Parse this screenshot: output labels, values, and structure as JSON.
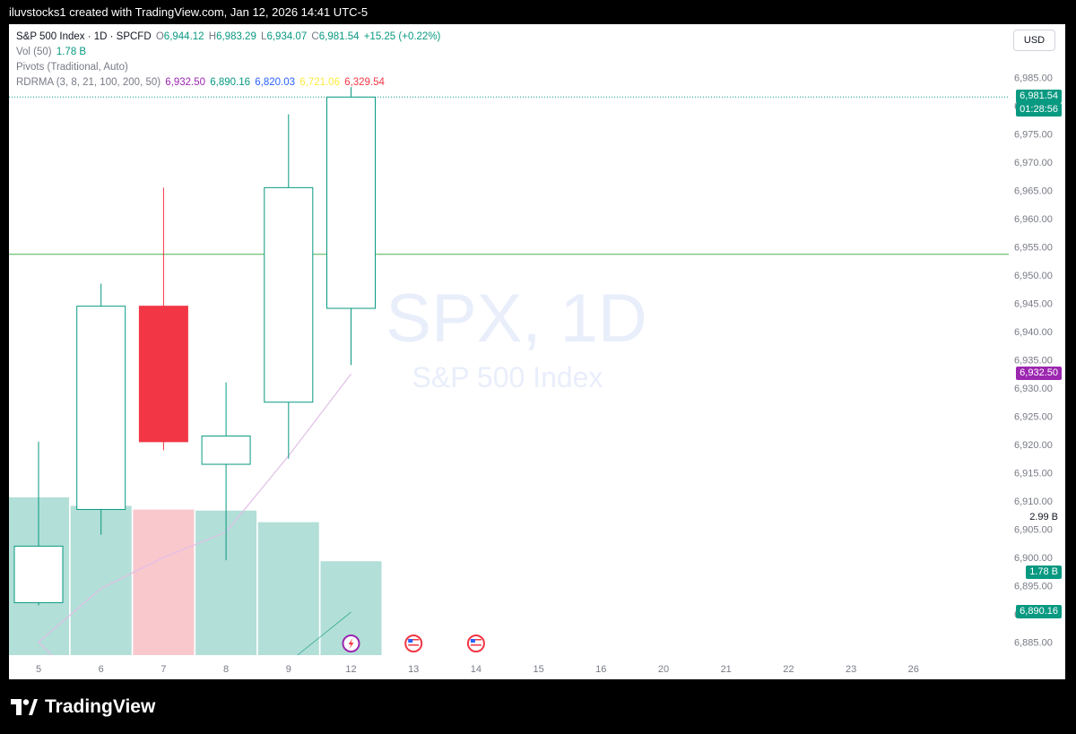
{
  "caption": "iluvstocks1 created with TradingView.com, Jan 12, 2026 14:41 UTC-5",
  "currency": "USD",
  "watermark": {
    "symbol": "SPX, 1D",
    "name": "S&P 500 Index"
  },
  "legend": {
    "symbol": "S&P 500 Index · 1D · SPCFD",
    "o_label": "O",
    "o": "6,944.12",
    "h_label": "H",
    "h": "6,983.29",
    "l_label": "L",
    "l": "6,934.07",
    "c_label": "C",
    "c": "6,981.54",
    "change": "+15.25 (+0.22%)",
    "vol_label": "Vol (50)",
    "vol": "1.78 B",
    "pivots": "Pivots (Traditional, Auto)",
    "rdrma_label": "RDRMA (3, 8, 21, 100, 200, 50)",
    "rdrma_values": [
      "6,932.50",
      "6,890.16",
      "6,820.03",
      "6,721.06",
      "6,329.54"
    ],
    "rdrma_colors": [
      "#9c27b0",
      "#089981",
      "#2962ff",
      "#ffeb3b",
      "#f23645"
    ]
  },
  "tags": {
    "last_price": "6,981.54",
    "countdown": "01:28:56",
    "ma_purple": "6,932.50",
    "vol_high": "2.99 B",
    "vol_last": "1.78 B",
    "ma_teal": "6,890.16"
  },
  "colors": {
    "up": "#089981",
    "down": "#f23645",
    "vol_up": "#b2dfd7",
    "vol_down": "#f8c8cd",
    "pivot": "#4caf50"
  },
  "footer": {
    "brand": "TradingView"
  },
  "chart_data": {
    "type": "candlestick",
    "x_ticks": [
      "5",
      "6",
      "7",
      "8",
      "9",
      "12",
      "13",
      "14",
      "15",
      "16",
      "20",
      "21",
      "22",
      "23",
      "26"
    ],
    "y_ticks": [
      "6,985.00",
      "6,980.00",
      "6,975.00",
      "6,970.00",
      "6,965.00",
      "6,960.00",
      "6,955.00",
      "6,950.00",
      "6,945.00",
      "6,940.00",
      "6,935.00",
      "6,930.00",
      "6,925.00",
      "6,920.00",
      "6,915.00",
      "6,910.00",
      "6,905.00",
      "6,900.00",
      "6,895.00",
      "6,890.00",
      "6,885.00"
    ],
    "y_tick_values": [
      6985,
      6980,
      6975,
      6970,
      6965,
      6960,
      6955,
      6950,
      6945,
      6940,
      6935,
      6930,
      6925,
      6920,
      6915,
      6910,
      6905,
      6900,
      6895,
      6890,
      6885
    ],
    "ylim": [
      6883.5,
      6989.5
    ],
    "candles": [
      {
        "date": "5",
        "open": 6892.0,
        "high": 6920.5,
        "low": 6891.5,
        "close": 6902.0
      },
      {
        "date": "6",
        "open": 6908.5,
        "high": 6948.5,
        "low": 6904.0,
        "close": 6944.5
      },
      {
        "date": "7",
        "open": 6944.5,
        "high": 6965.5,
        "low": 6919.0,
        "close": 6920.5
      },
      {
        "date": "8",
        "open": 6916.5,
        "high": 6931.0,
        "low": 6899.5,
        "close": 6921.5
      },
      {
        "date": "9",
        "open": 6927.5,
        "high": 6978.5,
        "low": 6917.5,
        "close": 6965.5
      },
      {
        "date": "12",
        "open": 6944.12,
        "high": 6983.29,
        "low": 6934.07,
        "close": 6981.54
      }
    ],
    "volume": [
      {
        "date": "5",
        "value": 2.99,
        "up": true
      },
      {
        "date": "6",
        "value": 2.83,
        "up": true
      },
      {
        "date": "7",
        "value": 2.76,
        "up": false
      },
      {
        "date": "8",
        "value": 2.74,
        "up": true
      },
      {
        "date": "9",
        "value": 2.52,
        "up": true
      },
      {
        "date": "12",
        "value": 1.78,
        "up": true
      }
    ],
    "volume_max_ref": 2.99,
    "pivot_level": 6953.7,
    "ma_line": [
      {
        "date": "5",
        "value": 6885.0
      },
      {
        "date": "6",
        "value": 6894.5
      },
      {
        "date": "7",
        "value": 6900.0
      },
      {
        "date": "8",
        "value": 6904.5
      },
      {
        "date": "9",
        "value": 6918.0
      },
      {
        "date": "12",
        "value": 6932.5
      }
    ],
    "vol_ma_line": [
      {
        "date": "9",
        "value": 0.0
      },
      {
        "date": "12",
        "value": 0.8
      }
    ],
    "last_price_level": 6981.54,
    "event_markers": [
      {
        "date": "12",
        "icon": "lightning-icon"
      },
      {
        "date": "13",
        "icon": "us-flag-icon"
      },
      {
        "date": "14",
        "icon": "us-flag-icon"
      }
    ]
  }
}
